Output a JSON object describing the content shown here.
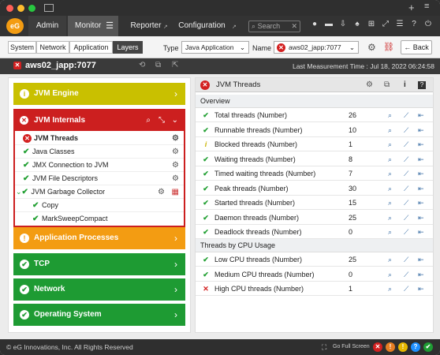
{
  "nav": {
    "admin": "Admin",
    "monitor": "Monitor",
    "reporter": "Reporter",
    "configuration": "Configuration",
    "search_placeholder": "Search"
  },
  "toolbar": {
    "tabs": [
      "System",
      "Network",
      "Application",
      "Layers"
    ],
    "type_label": "Type",
    "type_value": "Java Application",
    "name_label": "Name",
    "name_value": "aws02_japp:7077",
    "back_label": "Back"
  },
  "host": {
    "name": "aws02_japp:7077",
    "last_measurement": "Last Measurement Time : Jul 18, 2022 06:24:58"
  },
  "layers": [
    {
      "label": "JVM Engine",
      "color": "#c9c000",
      "status": "info"
    },
    {
      "label": "Application Processes",
      "color": "#f39c12",
      "status": "warning"
    },
    {
      "label": "TCP",
      "color": "#1e9b33",
      "status": "ok"
    },
    {
      "label": "Network",
      "color": "#1e9b33",
      "status": "ok"
    },
    {
      "label": "Operating System",
      "color": "#1e9b33",
      "status": "ok"
    }
  ],
  "jvm_internals": {
    "label": "JVM Internals",
    "items": [
      "JVM Threads",
      "Java Classes",
      "JMX Connection to JVM",
      "JVM File Descriptors",
      "JVM Garbage Collector",
      "Copy",
      "MarkSweepCompact"
    ]
  },
  "detail": {
    "title": "JVM Threads",
    "section1": "Overview",
    "section2": "Threads by CPU Usage",
    "overview_rows": [
      {
        "name": "Total threads (Number)",
        "value": "26",
        "status": "ok"
      },
      {
        "name": "Runnable threads (Number)",
        "value": "10",
        "status": "ok"
      },
      {
        "name": "Blocked threads (Number)",
        "value": "1",
        "status": "info"
      },
      {
        "name": "Waiting threads (Number)",
        "value": "8",
        "status": "ok"
      },
      {
        "name": "Timed waiting threads (Number)",
        "value": "7",
        "status": "ok"
      },
      {
        "name": "Peak threads (Number)",
        "value": "30",
        "status": "ok"
      },
      {
        "name": "Started threads (Number)",
        "value": "15",
        "status": "ok"
      },
      {
        "name": "Daemon threads (Number)",
        "value": "25",
        "status": "ok"
      },
      {
        "name": "Deadlock threads (Number)",
        "value": "0",
        "status": "ok"
      }
    ],
    "cpu_rows": [
      {
        "name": "Low CPU threads (Number)",
        "value": "25",
        "status": "ok"
      },
      {
        "name": "Medium CPU threads (Number)",
        "value": "0",
        "status": "ok"
      },
      {
        "name": "High CPU threads (Number)",
        "value": "1",
        "status": "error"
      }
    ]
  },
  "footer": {
    "copyright": "© eG Innovations, Inc. All Rights Reserved",
    "full_screen": "Go Full Screen"
  }
}
